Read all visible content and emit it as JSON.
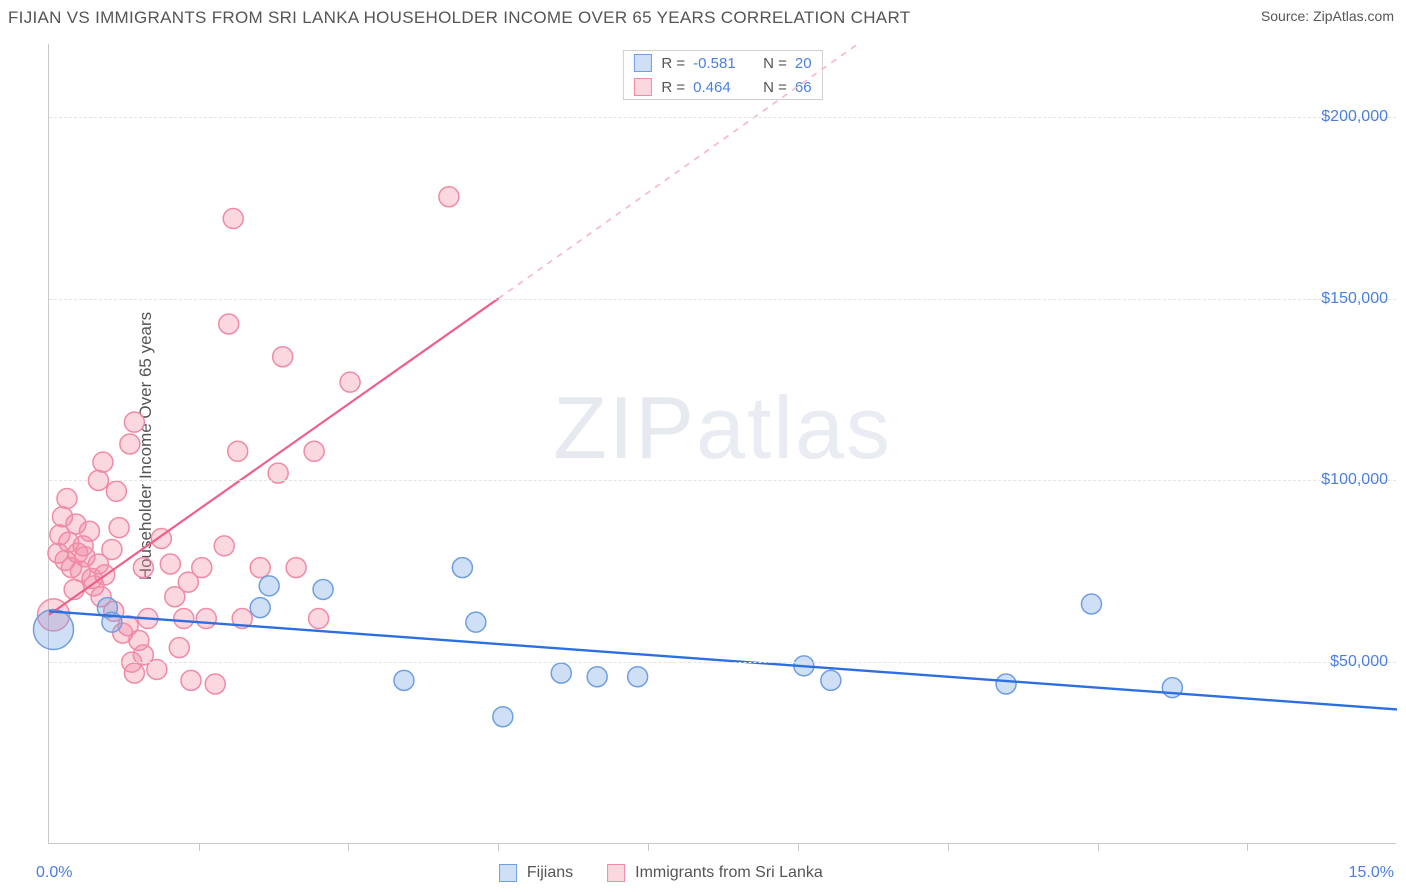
{
  "header": {
    "title": "FIJIAN VS IMMIGRANTS FROM SRI LANKA HOUSEHOLDER INCOME OVER 65 YEARS CORRELATION CHART",
    "source_prefix": "Source: ",
    "source_name": "ZipAtlas.com"
  },
  "watermark": {
    "part1": "ZIP",
    "part2": "atlas"
  },
  "chart": {
    "type": "scatter",
    "ylabel": "Householder Income Over 65 years",
    "xlim": [
      0.0,
      15.0
    ],
    "ylim": [
      0,
      220000
    ],
    "xaxis_min_label": "0.0%",
    "xaxis_max_label": "15.0%",
    "ytick_values": [
      50000,
      100000,
      150000,
      200000
    ],
    "ytick_labels": [
      "$50,000",
      "$100,000",
      "$150,000",
      "$200,000"
    ],
    "xtick_positions": [
      1.67,
      3.33,
      5.0,
      6.67,
      8.33,
      10.0,
      11.67,
      13.33
    ],
    "grid_color": "#e4e4e4",
    "background_color": "#ffffff",
    "series": {
      "fijians": {
        "label": "Fijians",
        "color_fill": "rgba(117,163,230,0.35)",
        "color_stroke": "#6f9fe0",
        "trend_color": "#2e6fe0",
        "marker_r": 10,
        "R": "-0.581",
        "N": "20",
        "trend": {
          "x1": 0.0,
          "y1": 64000,
          "x2": 15.0,
          "y2": 37000
        },
        "points": [
          {
            "x": 0.05,
            "y": 59000,
            "r": 20
          },
          {
            "x": 0.65,
            "y": 65000
          },
          {
            "x": 0.7,
            "y": 61000
          },
          {
            "x": 2.45,
            "y": 71000
          },
          {
            "x": 2.35,
            "y": 65000
          },
          {
            "x": 3.05,
            "y": 70000
          },
          {
            "x": 3.95,
            "y": 45000
          },
          {
            "x": 4.6,
            "y": 76000
          },
          {
            "x": 4.75,
            "y": 61000
          },
          {
            "x": 5.05,
            "y": 35000
          },
          {
            "x": 5.7,
            "y": 47000
          },
          {
            "x": 6.1,
            "y": 46000
          },
          {
            "x": 6.55,
            "y": 46000
          },
          {
            "x": 8.4,
            "y": 49000
          },
          {
            "x": 8.7,
            "y": 45000
          },
          {
            "x": 10.65,
            "y": 44000
          },
          {
            "x": 11.6,
            "y": 66000
          },
          {
            "x": 12.5,
            "y": 43000
          }
        ]
      },
      "srilanka": {
        "label": "Immigrants from Sri Lanka",
        "color_fill": "rgba(244,140,165,0.35)",
        "color_stroke": "#f08aa5",
        "trend_color": "#ef5f8a",
        "trend_dash_color": "#f7b6c8",
        "marker_r": 10,
        "R": "0.464",
        "N": "66",
        "trend_solid": {
          "x1": 0.0,
          "y1": 63000,
          "x2": 5.0,
          "y2": 150000
        },
        "trend_dashed": {
          "x1": 5.0,
          "y1": 150000,
          "x2": 9.0,
          "y2": 220000
        },
        "points": [
          {
            "x": 0.05,
            "y": 63000,
            "r": 16
          },
          {
            "x": 0.1,
            "y": 80000
          },
          {
            "x": 0.12,
            "y": 85000
          },
          {
            "x": 0.15,
            "y": 90000
          },
          {
            "x": 0.18,
            "y": 78000
          },
          {
            "x": 0.2,
            "y": 95000
          },
          {
            "x": 0.22,
            "y": 83000
          },
          {
            "x": 0.25,
            "y": 76000
          },
          {
            "x": 0.28,
            "y": 70000
          },
          {
            "x": 0.3,
            "y": 88000
          },
          {
            "x": 0.32,
            "y": 80000
          },
          {
            "x": 0.35,
            "y": 75000
          },
          {
            "x": 0.38,
            "y": 82000
          },
          {
            "x": 0.4,
            "y": 79000
          },
          {
            "x": 0.45,
            "y": 86000
          },
          {
            "x": 0.48,
            "y": 73000
          },
          {
            "x": 0.5,
            "y": 71000
          },
          {
            "x": 0.55,
            "y": 77000
          },
          {
            "x": 0.58,
            "y": 68000
          },
          {
            "x": 0.62,
            "y": 74000
          },
          {
            "x": 0.7,
            "y": 81000
          },
          {
            "x": 0.72,
            "y": 64000
          },
          {
            "x": 0.78,
            "y": 87000
          },
          {
            "x": 0.82,
            "y": 58000
          },
          {
            "x": 0.88,
            "y": 60000
          },
          {
            "x": 0.92,
            "y": 50000
          },
          {
            "x": 0.95,
            "y": 47000
          },
          {
            "x": 1.0,
            "y": 56000
          },
          {
            "x": 1.05,
            "y": 52000
          },
          {
            "x": 0.55,
            "y": 100000
          },
          {
            "x": 0.6,
            "y": 105000
          },
          {
            "x": 0.75,
            "y": 97000
          },
          {
            "x": 0.9,
            "y": 110000
          },
          {
            "x": 0.95,
            "y": 116000
          },
          {
            "x": 1.05,
            "y": 76000
          },
          {
            "x": 1.1,
            "y": 62000
          },
          {
            "x": 1.2,
            "y": 48000
          },
          {
            "x": 1.25,
            "y": 84000
          },
          {
            "x": 1.35,
            "y": 77000
          },
          {
            "x": 1.4,
            "y": 68000
          },
          {
            "x": 1.45,
            "y": 54000
          },
          {
            "x": 1.5,
            "y": 62000
          },
          {
            "x": 1.55,
            "y": 72000
          },
          {
            "x": 1.58,
            "y": 45000
          },
          {
            "x": 1.7,
            "y": 76000
          },
          {
            "x": 1.75,
            "y": 62000
          },
          {
            "x": 1.85,
            "y": 44000
          },
          {
            "x": 1.95,
            "y": 82000
          },
          {
            "x": 2.0,
            "y": 143000
          },
          {
            "x": 2.05,
            "y": 172000
          },
          {
            "x": 2.1,
            "y": 108000
          },
          {
            "x": 2.15,
            "y": 62000
          },
          {
            "x": 2.35,
            "y": 76000
          },
          {
            "x": 2.55,
            "y": 102000
          },
          {
            "x": 2.6,
            "y": 134000
          },
          {
            "x": 2.75,
            "y": 76000
          },
          {
            "x": 2.95,
            "y": 108000
          },
          {
            "x": 3.0,
            "y": 62000
          },
          {
            "x": 3.35,
            "y": 127000
          },
          {
            "x": 4.45,
            "y": 178000
          }
        ]
      }
    }
  },
  "legend_bottom": {
    "left": "Fijians",
    "right": "Immigrants from Sri Lanka"
  }
}
